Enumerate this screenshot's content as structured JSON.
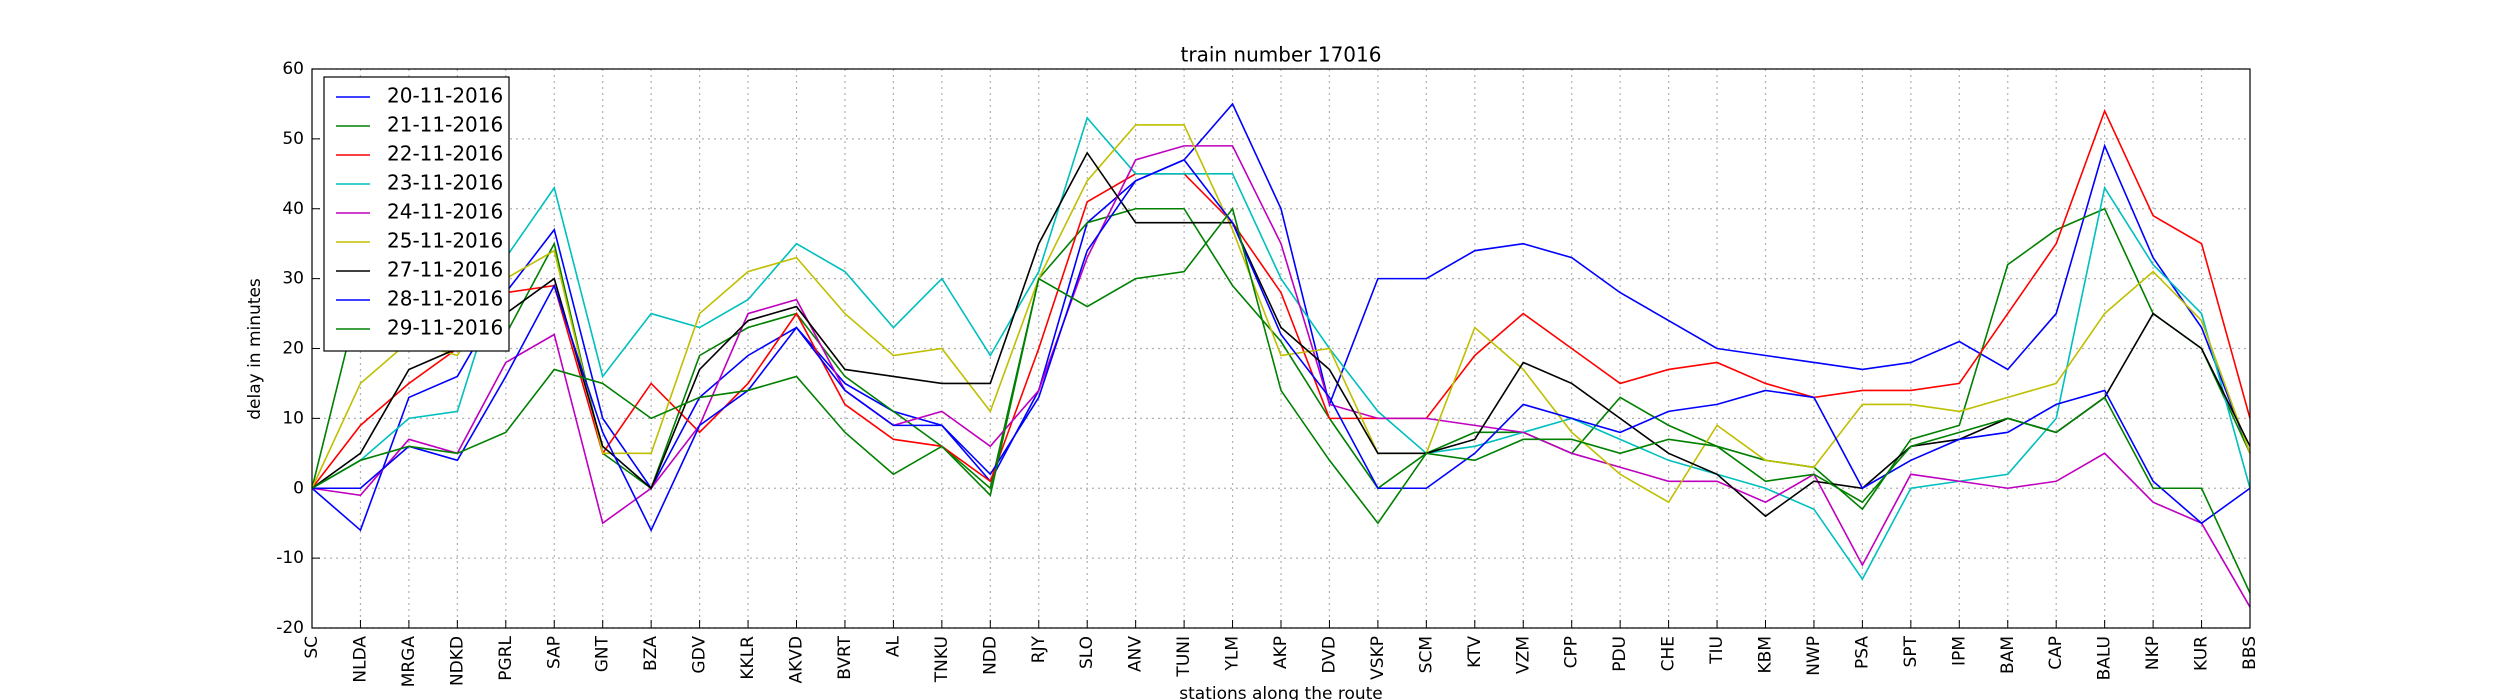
{
  "chart_data": {
    "type": "line",
    "title": "train number 17016",
    "x_label": "stations along the route",
    "y_label": "delay in minutes",
    "categories": [
      "SC",
      "NLDA",
      "MRGA",
      "NDKD",
      "PGRL",
      "SAP",
      "GNT",
      "BZA",
      "GDV",
      "KKLR",
      "AKVD",
      "BVRT",
      "AL",
      "TNKU",
      "NDD",
      "RJY",
      "SLO",
      "ANV",
      "TUNI",
      "YLM",
      "AKP",
      "DVD",
      "VSKP",
      "SCM",
      "KTV",
      "VZM",
      "CPP",
      "PDU",
      "CHE",
      "TIU",
      "KBM",
      "NWP",
      "PSA",
      "SPT",
      "IPM",
      "BAM",
      "CAP",
      "BALU",
      "NKP",
      "KUR",
      "BBS"
    ],
    "ylim": [
      -20,
      60
    ],
    "yticks": [
      -20,
      -10,
      0,
      10,
      20,
      30,
      40,
      50,
      60
    ],
    "grid": true,
    "legend": "upper left",
    "series": [
      {
        "name": "20-11-2016",
        "color": "#0000ff",
        "values": [
          0,
          -6,
          13,
          16,
          28,
          37,
          10,
          0,
          13,
          19,
          23,
          15,
          11,
          9,
          1,
          14,
          38,
          44,
          47,
          55,
          40,
          12,
          30,
          30,
          34,
          35,
          33,
          28,
          24,
          20,
          19,
          18,
          17,
          18,
          21,
          17,
          25,
          49,
          33,
          23,
          5
        ]
      },
      {
        "name": "21-11-2016",
        "color": "#008000",
        "values": [
          0,
          28,
          22,
          20,
          22,
          35,
          5,
          0,
          19,
          23,
          25,
          16,
          11,
          6,
          0,
          30,
          38,
          40,
          40,
          29,
          21,
          10,
          0,
          5,
          8,
          8,
          5,
          13,
          9,
          6,
          4,
          3,
          -3,
          7,
          9,
          32,
          37,
          40,
          25,
          20,
          5
        ]
      },
      {
        "name": "22-11-2016",
        "color": "#ff0000",
        "values": [
          0,
          9,
          15,
          20,
          28,
          29,
          5,
          15,
          8,
          15,
          25,
          12,
          7,
          6,
          1,
          20,
          41,
          45,
          45,
          38,
          28,
          10,
          10,
          10,
          19,
          25,
          20,
          15,
          17,
          18,
          15,
          13,
          14,
          14,
          15,
          25,
          35,
          54,
          39,
          35,
          10
        ]
      },
      {
        "name": "23-11-2016",
        "color": "#00bfbf",
        "values": [
          0,
          4,
          10,
          11,
          33,
          43,
          16,
          25,
          23,
          27,
          35,
          31,
          23,
          30,
          19,
          31,
          53,
          45,
          45,
          45,
          30,
          20,
          11,
          5,
          6,
          8,
          10,
          7,
          4,
          2,
          0,
          -3,
          -13,
          0,
          1,
          2,
          10,
          43,
          32,
          25,
          0
        ]
      },
      {
        "name": "24-11-2016",
        "color": "#bf00bf",
        "values": [
          0,
          -1,
          7,
          5,
          18,
          22,
          -5,
          0,
          9,
          25,
          27,
          14,
          9,
          11,
          6,
          14,
          33,
          47,
          49,
          49,
          35,
          12,
          10,
          10,
          9,
          8,
          5,
          3,
          1,
          1,
          -2,
          2,
          -11,
          2,
          1,
          0,
          1,
          5,
          -2,
          -5,
          -17
        ]
      },
      {
        "name": "25-11-2016",
        "color": "#bfbf00",
        "values": [
          0,
          15,
          21,
          19,
          30,
          34,
          5,
          5,
          25,
          31,
          33,
          25,
          19,
          20,
          11,
          30,
          44,
          52,
          52,
          37,
          19,
          20,
          5,
          5,
          23,
          17,
          8,
          2,
          -2,
          9,
          4,
          3,
          12,
          12,
          11,
          13,
          15,
          25,
          31,
          24,
          5
        ]
      },
      {
        "name": "27-11-2016",
        "color": "#000000",
        "values": [
          0,
          5,
          17,
          20,
          25,
          30,
          6,
          0,
          17,
          24,
          26,
          17,
          16,
          15,
          15,
          35,
          48,
          38,
          38,
          38,
          23,
          17,
          5,
          5,
          7,
          18,
          15,
          10,
          5,
          2,
          -4,
          1,
          0,
          6,
          7,
          10,
          8,
          13,
          25,
          20,
          6
        ]
      },
      {
        "name": "28-11-2016",
        "color": "#0000ff",
        "values": [
          0,
          0,
          6,
          4,
          16,
          29,
          8,
          -6,
          9,
          14,
          23,
          14,
          9,
          9,
          2,
          13,
          34,
          44,
          47,
          38,
          22,
          13,
          0,
          0,
          5,
          12,
          10,
          8,
          11,
          12,
          14,
          13,
          0,
          4,
          7,
          8,
          12,
          14,
          1,
          -5,
          0
        ]
      },
      {
        "name": "29-11-2016",
        "color": "#008000",
        "values": [
          0,
          4,
          6,
          5,
          8,
          17,
          15,
          10,
          13,
          14,
          16,
          8,
          2,
          6,
          -1,
          30,
          26,
          30,
          31,
          40,
          14,
          4,
          -5,
          5,
          4,
          7,
          7,
          5,
          7,
          6,
          1,
          2,
          -2,
          6,
          8,
          10,
          8,
          13,
          0,
          0,
          -15
        ]
      }
    ]
  }
}
